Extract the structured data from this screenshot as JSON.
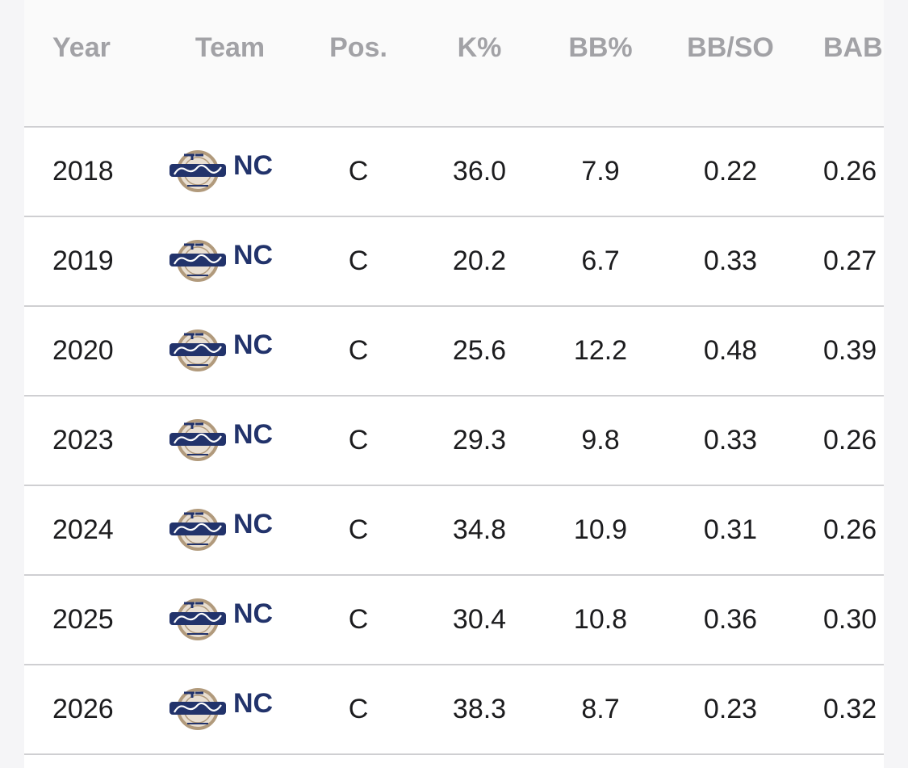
{
  "table": {
    "headers": {
      "year": "Year",
      "team": "Team",
      "pos": "Pos.",
      "k_pct": "K%",
      "bb_pct": "BB%",
      "bb_so": "BB/SO",
      "babip": "BABIP"
    },
    "rows": [
      {
        "year": "2018",
        "team": "NC",
        "team_logo": "nc-dinos-logo",
        "pos": "C",
        "k_pct": "36.0",
        "bb_pct": "7.9",
        "bb_so": "0.22",
        "babip": "0.26"
      },
      {
        "year": "2019",
        "team": "NC",
        "team_logo": "nc-dinos-logo",
        "pos": "C",
        "k_pct": "20.2",
        "bb_pct": "6.7",
        "bb_so": "0.33",
        "babip": "0.27"
      },
      {
        "year": "2020",
        "team": "NC",
        "team_logo": "nc-dinos-logo",
        "pos": "C",
        "k_pct": "25.6",
        "bb_pct": "12.2",
        "bb_so": "0.48",
        "babip": "0.39"
      },
      {
        "year": "2023",
        "team": "NC",
        "team_logo": "nc-dinos-logo",
        "pos": "C",
        "k_pct": "29.3",
        "bb_pct": "9.8",
        "bb_so": "0.33",
        "babip": "0.26"
      },
      {
        "year": "2024",
        "team": "NC",
        "team_logo": "nc-dinos-logo",
        "pos": "C",
        "k_pct": "34.8",
        "bb_pct": "10.9",
        "bb_so": "0.31",
        "babip": "0.26"
      },
      {
        "year": "2025",
        "team": "NC",
        "team_logo": "nc-dinos-logo",
        "pos": "C",
        "k_pct": "30.4",
        "bb_pct": "10.8",
        "bb_so": "0.36",
        "babip": "0.30"
      },
      {
        "year": "2026",
        "team": "NC",
        "team_logo": "nc-dinos-logo",
        "pos": "C",
        "k_pct": "38.3",
        "bb_pct": "8.7",
        "bb_so": "0.23",
        "babip": "0.32"
      }
    ]
  },
  "colors": {
    "header_text": "#a2a2a6",
    "cell_text": "#1c1c1e",
    "team_text": "#22336b",
    "divider": "#cfcfd2",
    "logo_gold": "#b19a7c"
  }
}
